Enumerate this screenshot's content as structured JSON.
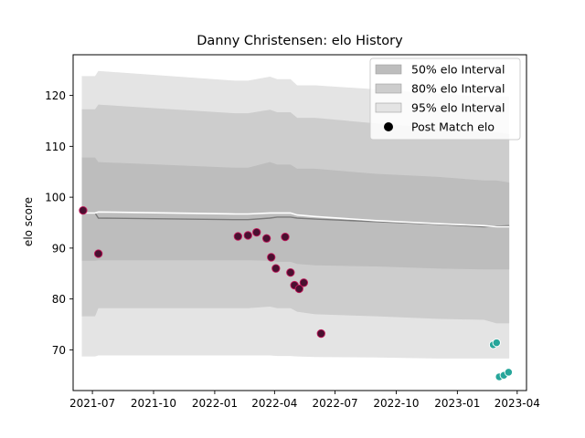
{
  "chart_data": {
    "type": "line",
    "title": "Danny Christensen: elo History",
    "xlabel": "",
    "ylabel": "elo score",
    "xlim": [
      "2021-06-02",
      "2023-04-15"
    ],
    "ylim": [
      62,
      128
    ],
    "x_ticks": [
      "2021-07-01",
      "2021-10-01",
      "2022-01-01",
      "2022-04-01",
      "2022-07-01",
      "2022-10-01",
      "2023-01-01",
      "2023-04-01"
    ],
    "x_tick_labels": [
      "2021-07",
      "2021-10",
      "2022-01",
      "2022-04",
      "2022-07",
      "2022-10",
      "2023-01",
      "2023-04"
    ],
    "y_ticks": [
      70,
      80,
      90,
      100,
      110,
      120
    ],
    "y_tick_labels": [
      "70",
      "80",
      "90",
      "100",
      "110",
      "120"
    ],
    "grid": false,
    "legend_position": "top-right",
    "colors": {
      "band95": "#e4e4e4",
      "band80": "#cdcdcd",
      "band50": "#bdbdbd",
      "median": "#7a7a7a",
      "mean": "#ffffff",
      "post_match_fill": "#000000",
      "match_point_fill": "#4a1030",
      "match_point_edge": "#c2185b",
      "recent_point_fill": "#26a69a",
      "recent_point_edge": "#ffffff"
    },
    "legend": [
      {
        "key": "band50",
        "label": "50% elo Interval"
      },
      {
        "key": "band80",
        "label": "80% elo Interval"
      },
      {
        "key": "band95",
        "label": "95% elo Interval"
      },
      {
        "key": "post_match",
        "label": "Post Match elo"
      }
    ],
    "bands": {
      "x": [
        "2021-06-15",
        "2021-07-05",
        "2021-07-10",
        "2022-02-01",
        "2022-02-20",
        "2022-03-25",
        "2022-04-05",
        "2022-04-25",
        "2022-05-05",
        "2022-06-01",
        "2022-09-01",
        "2022-12-01",
        "2023-02-10",
        "2023-03-01",
        "2023-03-20"
      ],
      "p95_upper": [
        123.8,
        123.8,
        124.8,
        122.9,
        122.9,
        123.7,
        123.2,
        123.2,
        122.0,
        122.0,
        121.2,
        120.4,
        119.8,
        119.8,
        119.8
      ],
      "p95_lower": [
        68.7,
        68.7,
        68.9,
        68.9,
        68.9,
        68.9,
        68.8,
        68.8,
        68.7,
        68.6,
        68.5,
        68.3,
        68.3,
        68.3,
        68.3
      ],
      "p80_upper": [
        117.3,
        117.3,
        118.2,
        116.5,
        116.5,
        117.2,
        116.7,
        116.7,
        115.6,
        115.6,
        114.5,
        113.6,
        112.8,
        112.8,
        112.4
      ],
      "p80_lower": [
        76.6,
        76.6,
        78.2,
        78.2,
        78.2,
        78.5,
        78.2,
        78.2,
        77.5,
        77.0,
        76.6,
        76.1,
        75.9,
        75.2,
        75.2
      ],
      "p50_upper": [
        107.8,
        107.8,
        106.9,
        105.8,
        105.8,
        106.9,
        106.4,
        106.4,
        105.6,
        105.6,
        104.6,
        104.0,
        103.3,
        103.3,
        102.9
      ],
      "p50_lower": [
        87.5,
        87.5,
        87.6,
        87.6,
        87.6,
        87.5,
        87.3,
        87.3,
        86.9,
        86.6,
        86.4,
        86.0,
        85.8,
        85.8,
        85.8
      ]
    },
    "series": [
      {
        "kind": "median",
        "x": [
          "2021-06-15",
          "2021-07-05",
          "2021-07-10",
          "2022-02-01",
          "2022-02-20",
          "2022-03-25",
          "2022-04-05",
          "2022-04-25",
          "2022-05-05",
          "2022-06-01",
          "2022-09-01",
          "2022-12-01",
          "2023-02-10",
          "2023-03-01",
          "2023-03-20"
        ],
        "y": [
          96.9,
          96.9,
          95.9,
          95.6,
          95.6,
          95.9,
          96.1,
          96.1,
          95.9,
          95.7,
          95.2,
          94.7,
          94.2,
          94.3,
          94.4
        ]
      },
      {
        "kind": "mean",
        "x": [
          "2021-06-15",
          "2021-07-05",
          "2021-07-10",
          "2022-02-01",
          "2022-02-20",
          "2022-03-25",
          "2022-04-05",
          "2022-04-25",
          "2022-05-05",
          "2022-06-01",
          "2022-09-01",
          "2022-12-01",
          "2023-02-10",
          "2023-03-01",
          "2023-03-20"
        ],
        "y": [
          96.9,
          96.9,
          97.1,
          96.7,
          96.7,
          96.9,
          96.9,
          96.9,
          96.5,
          96.2,
          95.4,
          94.8,
          94.4,
          94.2,
          94.2
        ]
      }
    ],
    "match_points": [
      {
        "x": "2021-06-17",
        "y": 97.4
      },
      {
        "x": "2021-07-10",
        "y": 88.9
      },
      {
        "x": "2022-02-05",
        "y": 92.3
      },
      {
        "x": "2022-02-20",
        "y": 92.5
      },
      {
        "x": "2022-03-05",
        "y": 93.1
      },
      {
        "x": "2022-03-20",
        "y": 91.9
      },
      {
        "x": "2022-03-27",
        "y": 88.2
      },
      {
        "x": "2022-04-03",
        "y": 86.0
      },
      {
        "x": "2022-04-17",
        "y": 92.2
      },
      {
        "x": "2022-04-25",
        "y": 85.2
      },
      {
        "x": "2022-05-01",
        "y": 82.7
      },
      {
        "x": "2022-05-08",
        "y": 82.0
      },
      {
        "x": "2022-05-15",
        "y": 83.2
      },
      {
        "x": "2022-06-10",
        "y": 73.2
      }
    ],
    "recent_points": [
      {
        "x": "2023-02-24",
        "y": 71.0
      },
      {
        "x": "2023-03-01",
        "y": 71.4
      },
      {
        "x": "2023-03-05",
        "y": 64.7
      },
      {
        "x": "2023-03-12",
        "y": 65.0
      },
      {
        "x": "2023-03-19",
        "y": 65.6
      }
    ]
  }
}
